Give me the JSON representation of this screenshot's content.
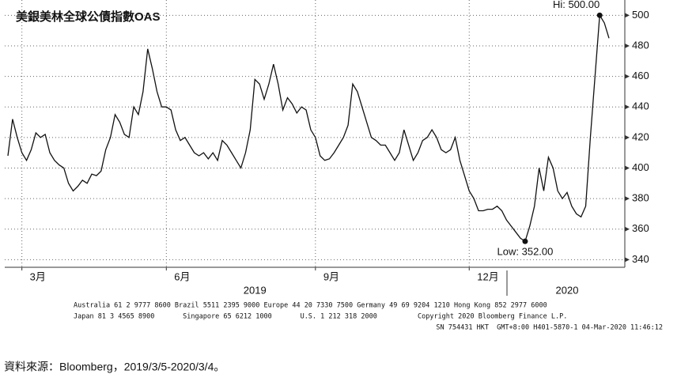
{
  "chart_data": {
    "type": "line",
    "title": "美銀美林全球公債指數OAS",
    "series": [
      {
        "name": "OAS",
        "color": "#111111",
        "values": [
          408,
          432,
          420,
          410,
          405,
          412,
          423,
          420,
          422,
          410,
          405,
          402,
          400,
          390,
          385,
          388,
          392,
          390,
          396,
          395,
          398,
          412,
          420,
          435,
          430,
          422,
          420,
          440,
          435,
          450,
          478,
          465,
          450,
          440,
          440,
          438,
          425,
          418,
          420,
          415,
          410,
          408,
          410,
          406,
          410,
          405,
          418,
          415,
          410,
          405,
          400,
          410,
          425,
          458,
          455,
          445,
          455,
          468,
          455,
          438,
          446,
          442,
          436,
          440,
          438,
          425,
          420,
          408,
          405,
          406,
          410,
          415,
          420,
          428,
          455,
          450,
          440,
          430,
          420,
          418,
          415,
          415,
          410,
          405,
          410,
          425,
          415,
          405,
          410,
          418,
          420,
          425,
          420,
          412,
          410,
          412,
          420,
          405,
          395,
          385,
          380,
          372,
          372,
          373,
          373,
          375,
          372,
          366,
          362,
          358,
          354,
          352,
          362,
          375,
          400,
          385,
          407,
          400,
          385,
          380,
          384,
          375,
          370,
          368,
          375,
          420,
          460,
          500,
          495,
          485
        ]
      }
    ],
    "xlim": [
      0,
      129
    ],
    "xticks": [
      {
        "value": 3,
        "label": "3月"
      },
      {
        "value": 34,
        "label": "6月"
      },
      {
        "value": 66,
        "label": "9月"
      },
      {
        "value": 99,
        "label": "12月"
      }
    ],
    "year_labels": [
      {
        "value": 53,
        "label": "2019"
      },
      {
        "value": 120,
        "label": "2020"
      }
    ],
    "ylim": [
      335,
      510
    ],
    "yticks": [
      340,
      360,
      380,
      400,
      420,
      440,
      460,
      480,
      500
    ],
    "grid": true,
    "annotations": [
      {
        "label": "Hi: 500.00",
        "index": 127
      },
      {
        "label": "Low: 352.00",
        "index": 111
      }
    ],
    "footer": [
      "Australia 61 2 9777 8600 Brazil 5511 2395 9000 Europe 44 20 7330 7500 Germany 49 69 9204 1210 Hong Kong 852 2977 6000",
      "Japan 81 3 4565 8900       Singapore 65 6212 1000       U.S. 1 212 318 2000          Copyright 2020 Bloomberg Finance L.P.",
      "SN 754431 HKT  GMT+8:00 H401-5870-1 04-Mar-2020 11:46:12"
    ],
    "source": "資料來源：Bloomberg，2019/3/5-2020/3/4。"
  }
}
